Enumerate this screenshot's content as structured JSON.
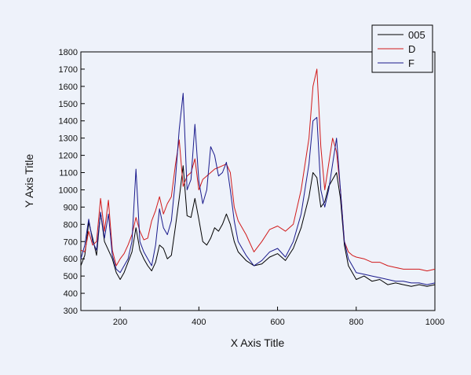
{
  "chart_data": {
    "type": "line",
    "title": "",
    "xlabel": "X Axis Title",
    "ylabel": "Y Axis Title",
    "xlim": [
      100,
      1000
    ],
    "ylim": [
      300,
      1800
    ],
    "xticks": [
      200,
      400,
      600,
      800,
      1000
    ],
    "yticks": [
      300,
      400,
      500,
      600,
      700,
      800,
      900,
      1000,
      1100,
      1200,
      1300,
      1400,
      1500,
      1600,
      1700,
      1800
    ],
    "grid": false,
    "legend_position": "top-right",
    "series": [
      {
        "name": "005",
        "color": "#000000",
        "x": [
          100,
          110,
          120,
          130,
          140,
          150,
          160,
          170,
          180,
          190,
          200,
          210,
          220,
          230,
          240,
          250,
          260,
          270,
          280,
          290,
          300,
          310,
          320,
          330,
          340,
          350,
          360,
          370,
          380,
          390,
          400,
          410,
          420,
          430,
          440,
          450,
          460,
          470,
          480,
          490,
          500,
          520,
          540,
          560,
          580,
          600,
          620,
          640,
          660,
          680,
          690,
          700,
          710,
          720,
          730,
          740,
          750,
          760,
          770,
          780,
          790,
          800,
          820,
          840,
          860,
          880,
          900,
          920,
          940,
          960,
          980,
          1000
        ],
        "y": [
          560,
          620,
          810,
          720,
          620,
          870,
          700,
          650,
          600,
          520,
          480,
          520,
          580,
          640,
          780,
          650,
          600,
          560,
          530,
          580,
          680,
          660,
          600,
          620,
          780,
          950,
          1140,
          850,
          840,
          950,
          830,
          700,
          680,
          720,
          780,
          760,
          800,
          860,
          800,
          700,
          640,
          590,
          560,
          570,
          610,
          630,
          590,
          660,
          780,
          960,
          1100,
          1070,
          900,
          930,
          1020,
          1060,
          1100,
          950,
          680,
          560,
          520,
          480,
          500,
          470,
          480,
          450,
          460,
          450,
          440,
          450,
          440,
          450
        ]
      },
      {
        "name": "D",
        "color": "#d11a1a",
        "x": [
          100,
          110,
          120,
          130,
          140,
          150,
          160,
          170,
          180,
          190,
          200,
          210,
          220,
          230,
          240,
          250,
          260,
          270,
          280,
          290,
          300,
          310,
          320,
          330,
          340,
          350,
          360,
          370,
          380,
          390,
          400,
          410,
          420,
          430,
          440,
          450,
          460,
          470,
          480,
          490,
          500,
          520,
          540,
          560,
          580,
          600,
          620,
          640,
          660,
          680,
          690,
          700,
          710,
          720,
          730,
          740,
          750,
          760,
          770,
          780,
          790,
          800,
          820,
          840,
          860,
          880,
          900,
          920,
          940,
          960,
          980,
          1000
        ],
        "y": [
          650,
          640,
          760,
          680,
          700,
          950,
          760,
          940,
          650,
          560,
          600,
          630,
          680,
          740,
          840,
          760,
          710,
          720,
          820,
          880,
          960,
          860,
          920,
          960,
          1140,
          1290,
          1020,
          1080,
          1100,
          1180,
          1000,
          1060,
          1080,
          1100,
          1120,
          1130,
          1140,
          1150,
          1100,
          900,
          820,
          740,
          640,
          700,
          770,
          790,
          760,
          800,
          1000,
          1300,
          1600,
          1700,
          1250,
          1000,
          1150,
          1300,
          1220,
          1000,
          700,
          640,
          620,
          610,
          600,
          580,
          580,
          560,
          550,
          540,
          540,
          540,
          530,
          540
        ]
      },
      {
        "name": "F",
        "color": "#1a1a8c",
        "x": [
          100,
          110,
          120,
          130,
          140,
          150,
          160,
          170,
          180,
          190,
          200,
          210,
          220,
          230,
          240,
          250,
          260,
          270,
          280,
          290,
          300,
          310,
          320,
          330,
          340,
          350,
          360,
          370,
          380,
          390,
          400,
          410,
          420,
          430,
          440,
          450,
          460,
          470,
          480,
          490,
          500,
          520,
          540,
          560,
          580,
          600,
          620,
          640,
          660,
          680,
          690,
          700,
          710,
          720,
          730,
          740,
          750,
          760,
          770,
          780,
          790,
          800,
          820,
          840,
          860,
          880,
          900,
          920,
          940,
          960,
          980,
          1000
        ],
        "y": [
          600,
          680,
          830,
          700,
          650,
          870,
          720,
          860,
          620,
          540,
          520,
          560,
          600,
          700,
          1120,
          700,
          640,
          600,
          560,
          680,
          890,
          780,
          740,
          820,
          1050,
          1350,
          1560,
          1000,
          1060,
          1380,
          1050,
          920,
          1000,
          1250,
          1200,
          1080,
          1100,
          1160,
          1000,
          820,
          700,
          620,
          560,
          590,
          640,
          660,
          610,
          700,
          860,
          1150,
          1400,
          1420,
          1000,
          900,
          1000,
          1150,
          1300,
          1000,
          700,
          600,
          560,
          520,
          510,
          500,
          490,
          480,
          470,
          470,
          460,
          460,
          450,
          460
        ]
      }
    ]
  }
}
